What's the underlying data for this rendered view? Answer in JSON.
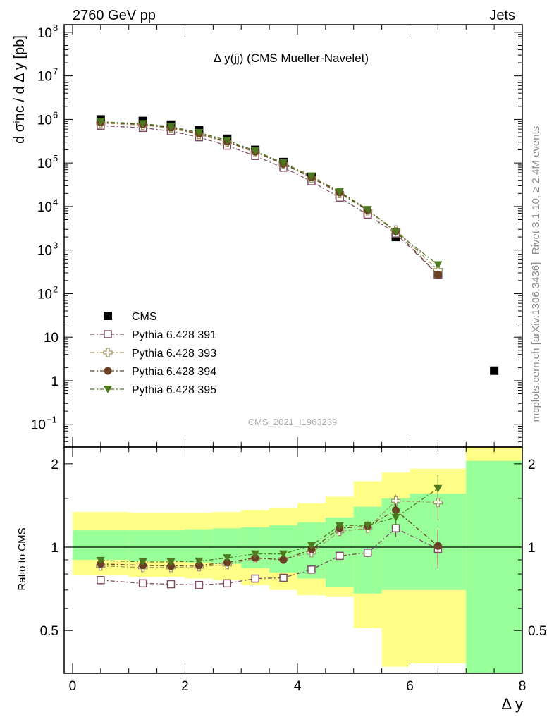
{
  "header": {
    "left": "2760 GeV pp",
    "right": "Jets"
  },
  "side_labels": {
    "top": "Rivet 3.1.10, ≥ 2.4M events",
    "bottom": "mcplots.cern.ch [arXiv:1306.3436]"
  },
  "watermark": "CMS_2021_I1963239",
  "colors": {
    "cms": "#000000",
    "p391": "#7d4b63",
    "p393": "#a49a66",
    "p394": "#6b4226",
    "p395": "#4d7a1e",
    "band_outer": "#ffff88",
    "band_inner": "#99ff99"
  },
  "chart_data": [
    {
      "type": "scatter",
      "title": "Δ y(jj) (CMS Mueller-Navelet)",
      "ylabel": "d σⁱnc / d Δ y [pb]",
      "xlabel": "",
      "yscale": "log",
      "ylim": [
        0.03,
        150000000
      ],
      "xlim": [
        -0.15,
        8.0
      ],
      "yticks": [
        {
          "value": 100000000,
          "label": "10",
          "exp": "8"
        },
        {
          "value": 10000000,
          "label": "10",
          "exp": "7"
        },
        {
          "value": 1000000,
          "label": "10",
          "exp": "6"
        },
        {
          "value": 100000,
          "label": "10",
          "exp": "5"
        },
        {
          "value": 10000,
          "label": "10",
          "exp": "4"
        },
        {
          "value": 1000,
          "label": "10",
          "exp": "3"
        },
        {
          "value": 100,
          "label": "10",
          "exp": "2"
        },
        {
          "value": 10,
          "label": "10",
          "exp": ""
        },
        {
          "value": 1,
          "label": "1",
          "exp": ""
        },
        {
          "value": 0.1,
          "label": "10",
          "exp": "−1"
        }
      ],
      "legend_position": "bottom-left",
      "series": [
        {
          "name": "CMS",
          "key": "cms",
          "marker": "square-filled",
          "x": [
            0.5,
            1.25,
            1.75,
            2.25,
            2.75,
            3.25,
            3.75,
            4.25,
            4.75,
            5.25,
            5.75,
            6.5,
            7.5
          ],
          "y": [
            1000000,
            920000,
            760000,
            560000,
            360000,
            200000,
            105000,
            48000,
            18000,
            7000,
            2000,
            280,
            1.7
          ]
        },
        {
          "name": "Pythia 6.428 391",
          "key": "p391",
          "marker": "square-open",
          "x": [
            0.5,
            1.25,
            1.75,
            2.25,
            2.75,
            3.25,
            3.75,
            4.25,
            4.75,
            5.25,
            5.75,
            6.5
          ],
          "y": [
            720000,
            640000,
            540000,
            390000,
            250000,
            145000,
            78000,
            38000,
            16000,
            6500,
            2400,
            270
          ]
        },
        {
          "name": "Pythia 6.428 393",
          "key": "p393",
          "marker": "cross-open",
          "x": [
            0.5,
            1.25,
            1.75,
            2.25,
            2.75,
            3.25,
            3.75,
            4.25,
            4.75,
            5.25,
            5.75,
            6.5
          ],
          "y": [
            820000,
            740000,
            630000,
            450000,
            300000,
            175000,
            95000,
            45000,
            20000,
            8000,
            2900,
            350
          ]
        },
        {
          "name": "Pythia 6.428 394",
          "key": "p394",
          "marker": "circle-filled",
          "x": [
            0.5,
            1.25,
            1.75,
            2.25,
            2.75,
            3.25,
            3.75,
            4.25,
            4.75,
            5.25,
            5.75,
            6.5
          ],
          "y": [
            850000,
            770000,
            650000,
            470000,
            310000,
            180000,
            95000,
            47000,
            21000,
            8200,
            2700,
            270
          ]
        },
        {
          "name": "Pythia 6.428 395",
          "key": "p395",
          "marker": "triangle-down-filled",
          "x": [
            0.5,
            1.25,
            1.75,
            2.25,
            2.75,
            3.25,
            3.75,
            4.25,
            4.75,
            5.25,
            5.75,
            6.5
          ],
          "y": [
            880000,
            800000,
            680000,
            500000,
            330000,
            190000,
            100000,
            50000,
            22000,
            8500,
            2600,
            460
          ]
        }
      ]
    },
    {
      "type": "scatter",
      "title": "",
      "ylabel": "Ratio to CMS",
      "xlabel": "Δ y",
      "ylim": [
        0.35,
        2.3
      ],
      "xlim": [
        -0.15,
        8.0
      ],
      "yticks": [
        0.5,
        1,
        2
      ],
      "xticks": [
        0,
        2,
        4,
        6,
        8
      ],
      "reference_line": 1,
      "bands": {
        "edges": [
          0,
          1,
          2,
          2.5,
          3,
          3.5,
          4,
          4.5,
          5,
          5.5,
          6,
          7,
          8
        ],
        "outer_low": [
          0.79,
          0.78,
          0.77,
          0.76,
          0.73,
          0.7,
          0.67,
          0.66,
          0.51,
          0.37,
          0.38,
          0.35
        ],
        "outer_high": [
          1.34,
          1.33,
          1.33,
          1.34,
          1.36,
          1.39,
          1.44,
          1.52,
          1.73,
          1.86,
          1.92,
          2.3
        ],
        "inner_low": [
          0.9,
          0.89,
          0.88,
          0.87,
          0.84,
          0.81,
          0.77,
          0.72,
          0.68,
          0.7,
          0.7,
          0.35
        ],
        "inner_high": [
          1.15,
          1.15,
          1.16,
          1.17,
          1.18,
          1.2,
          1.23,
          1.28,
          1.4,
          1.5,
          1.56,
          2.05
        ]
      },
      "series": [
        {
          "name": "Pythia 6.428 391",
          "key": "p391",
          "marker": "square-open",
          "x": [
            0.5,
            1.25,
            1.75,
            2.25,
            2.75,
            3.25,
            3.75,
            4.25,
            4.75,
            5.25,
            5.75,
            6.5
          ],
          "y": [
            0.76,
            0.74,
            0.735,
            0.73,
            0.74,
            0.77,
            0.775,
            0.83,
            0.93,
            0.955,
            1.17,
            0.985
          ],
          "err": [
            0,
            0,
            0,
            0,
            0,
            0,
            0,
            0,
            0,
            0.035,
            0.08,
            0.15
          ]
        },
        {
          "name": "Pythia 6.428 393",
          "key": "p393",
          "marker": "cross-open",
          "x": [
            0.5,
            1.25,
            1.75,
            2.25,
            2.75,
            3.25,
            3.75,
            4.25,
            4.75,
            5.25,
            5.75,
            6.5
          ],
          "y": [
            0.855,
            0.845,
            0.845,
            0.85,
            0.865,
            0.91,
            0.905,
            0.955,
            1.14,
            1.17,
            1.47,
            1.45
          ],
          "err": [
            0,
            0,
            0,
            0,
            0,
            0,
            0,
            0,
            0.03,
            0.04,
            0.08,
            0.2
          ]
        },
        {
          "name": "Pythia 6.428 394",
          "key": "p394",
          "marker": "circle-filled",
          "x": [
            0.5,
            1.25,
            1.75,
            2.25,
            2.75,
            3.25,
            3.75,
            4.25,
            4.75,
            5.25,
            5.75,
            6.5
          ],
          "y": [
            0.87,
            0.86,
            0.855,
            0.86,
            0.88,
            0.915,
            0.9,
            0.98,
            1.17,
            1.19,
            1.36,
            1.01
          ],
          "err": [
            0,
            0,
            0,
            0,
            0,
            0,
            0,
            0,
            0.03,
            0.04,
            0.08,
            0.15
          ]
        },
        {
          "name": "Pythia 6.428 395",
          "key": "p395",
          "marker": "triangle-down-filled",
          "x": [
            0.5,
            1.25,
            1.75,
            2.25,
            2.75,
            3.25,
            3.75,
            4.25,
            4.75,
            5.25,
            5.75,
            6.5
          ],
          "y": [
            0.895,
            0.885,
            0.885,
            0.89,
            0.915,
            0.945,
            0.945,
            1.015,
            1.195,
            1.2,
            1.28,
            1.63
          ],
          "err": [
            0,
            0,
            0,
            0,
            0,
            0,
            0,
            0,
            0.03,
            0.04,
            0.08,
            0.2
          ]
        }
      ]
    }
  ]
}
